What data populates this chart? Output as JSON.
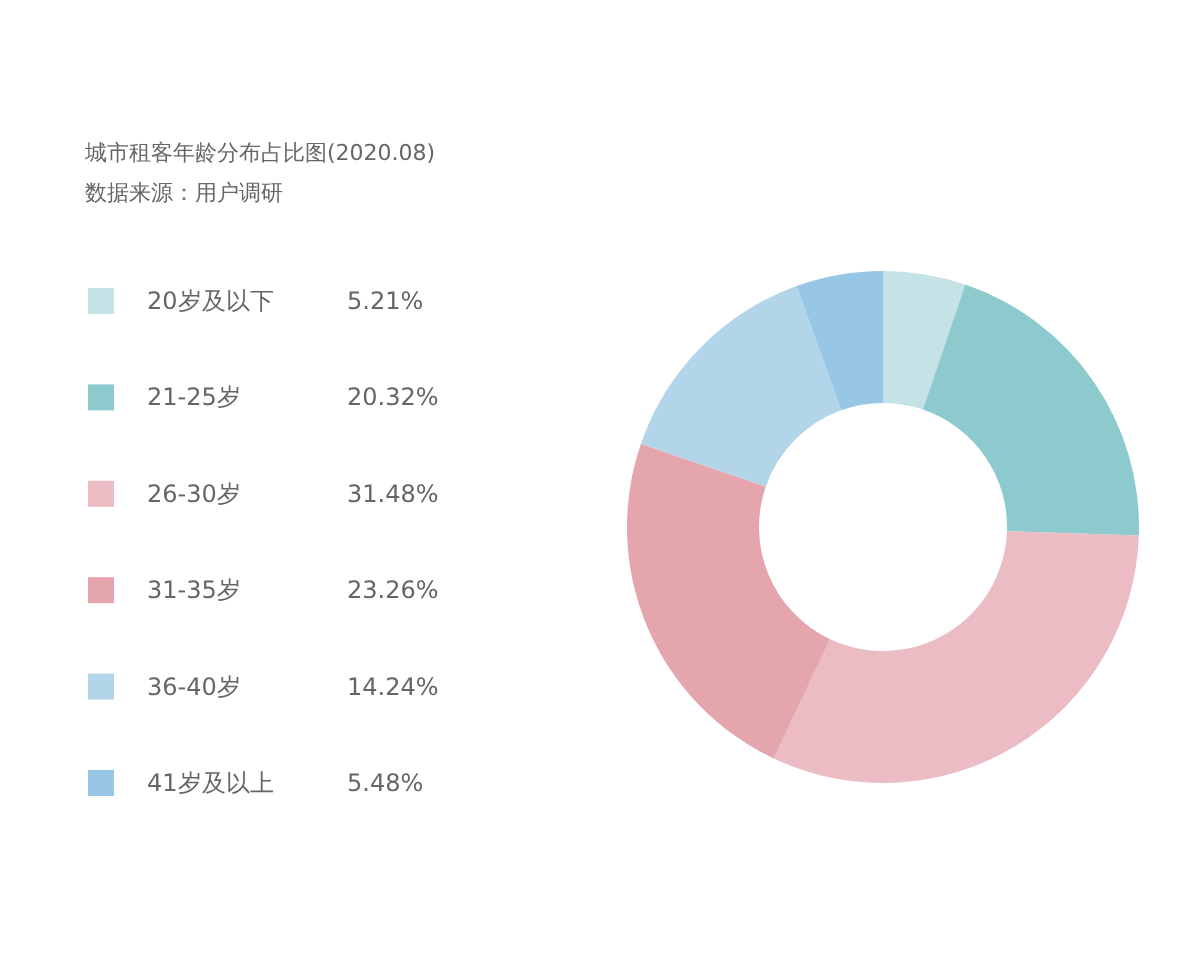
{
  "chart_data": {
    "type": "donut",
    "title": "城市租客年龄分布占比图(2020.08)",
    "annotations": [
      "数据来源：用户调研"
    ],
    "categories": [
      "20岁及以下",
      "21-25岁",
      "26-30岁",
      "31-35岁",
      "36-40岁",
      "41岁及以上"
    ],
    "values": [
      5.21,
      20.32,
      31.48,
      23.26,
      14.24,
      5.48
    ],
    "value_labels": [
      "5.21%",
      "20.32%",
      "31.48%",
      "23.26%",
      "14.24%",
      "5.48%"
    ],
    "colors": [
      "#c5e3e6",
      "#8ccacd",
      "#ecbcc5",
      "#e4a5ad",
      "#b3d5ea",
      "#98c7e5"
    ],
    "legend": "left"
  }
}
